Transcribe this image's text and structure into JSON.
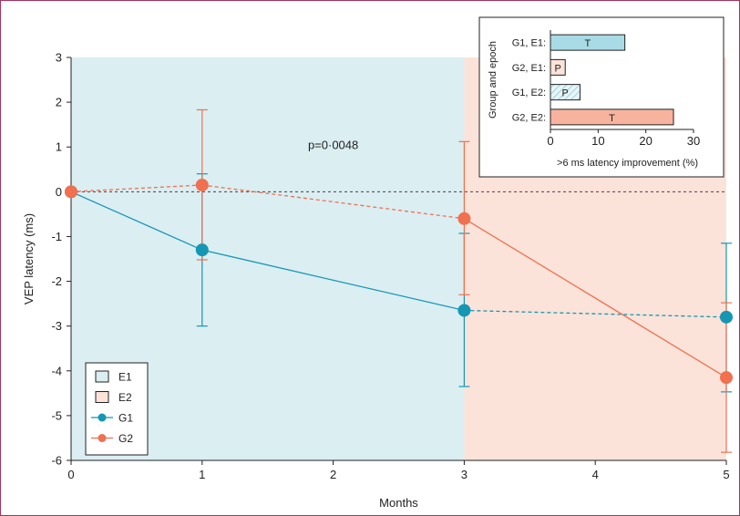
{
  "chart_data": [
    {
      "type": "line",
      "xlabel": "Months",
      "ylabel": "VEP latency (ms)",
      "xlim": [
        0,
        5
      ],
      "ylim": [
        -6,
        3
      ],
      "xticks": [
        "0",
        "1",
        "2",
        "3",
        "4",
        "5"
      ],
      "yticks": [
        "3",
        "2",
        "1",
        "0",
        "-1",
        "-2",
        "-3",
        "-4",
        "-5",
        "-6"
      ],
      "annotation": "p=0·0048",
      "epochs": [
        {
          "name": "E1",
          "x_start": 0,
          "x_end": 3,
          "color": "#dbeef2"
        },
        {
          "name": "E2",
          "x_start": 3,
          "x_end": 5,
          "color": "#fbe3d9"
        }
      ],
      "series": [
        {
          "name": "G1",
          "color": "#1597b4",
          "x": [
            0,
            1,
            3,
            5
          ],
          "y": [
            0,
            -1.3,
            -2.65,
            -2.8
          ],
          "err_low": [
            0,
            -3.0,
            -4.35,
            -4.47
          ],
          "err_high": [
            0,
            0.4,
            -0.93,
            -1.15
          ],
          "dashed_segments": [
            2
          ]
        },
        {
          "name": "G2",
          "color": "#f0704f",
          "x": [
            0,
            1,
            3,
            5
          ],
          "y": [
            0,
            0.15,
            -0.6,
            -4.15
          ],
          "err_low": [
            0,
            -1.52,
            -2.3,
            -5.82
          ],
          "err_high": [
            0,
            1.83,
            1.12,
            -2.48
          ],
          "dashed_segments": [
            0,
            1
          ]
        }
      ],
      "legend": [
        {
          "label": "E1",
          "kind": "box",
          "fill": "#dbeef2"
        },
        {
          "label": "E2",
          "kind": "box",
          "fill": "#fbe3d9"
        },
        {
          "label": "G1",
          "kind": "line",
          "color": "#1597b4"
        },
        {
          "label": "G2",
          "kind": "line",
          "color": "#f0704f"
        }
      ],
      "legend_position": "bottom-left",
      "zero_line": true
    },
    {
      "type": "bar",
      "orientation": "horizontal",
      "ylabel": "Group and epoch",
      "xlabel": ">6 ms latency improvement (%)",
      "xlim": [
        0,
        30
      ],
      "xticks": [
        "0",
        "10",
        "20",
        "30"
      ],
      "categories": [
        "G1, E1:",
        "G2, E1:",
        "G1, E2:",
        "G2, E2:"
      ],
      "values": [
        15.6,
        3.1,
        6.2,
        25.8
      ],
      "bar_labels": [
        "T",
        "P",
        "P",
        "T"
      ],
      "bar_fills": [
        "#a8dbe6",
        "#fbe3d9",
        "hatch-blue",
        "#f8b39f"
      ],
      "legend_position": "inset top-right"
    }
  ]
}
